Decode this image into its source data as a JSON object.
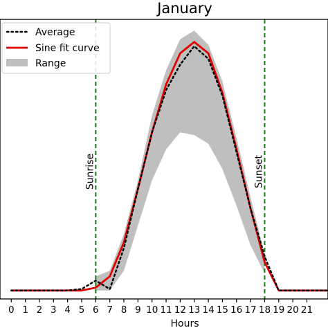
{
  "chart_data": {
    "type": "line",
    "title": "January",
    "xlabel": "Hours",
    "ylabel": "",
    "xlim": [
      -0.8,
      22.5
    ],
    "ylim": [
      -0.3,
      9.6
    ],
    "x_ticks": [
      "0",
      "1",
      "2",
      "3",
      "4",
      "5",
      "6",
      "7",
      "8",
      "9",
      "10",
      "11",
      "12",
      "13",
      "14",
      "15",
      "16",
      "17",
      "18",
      "19",
      "20",
      "21"
    ],
    "grid": false,
    "legend_position": "top-left",
    "series": [
      {
        "name": "Average",
        "style": "dotted",
        "color": "#000000",
        "x": [
          0,
          1,
          2,
          3,
          4,
          5,
          6,
          7,
          8,
          9,
          10,
          11,
          12,
          13,
          14,
          15,
          16,
          17,
          18,
          19,
          20,
          21,
          22,
          23
        ],
        "values": [
          0,
          0,
          0,
          0,
          0,
          0.05,
          0.35,
          0.05,
          1.5,
          3.6,
          5.6,
          7.1,
          8.0,
          8.65,
          8.2,
          6.9,
          4.9,
          2.9,
          1.2,
          0,
          0,
          0,
          0,
          0
        ]
      },
      {
        "name": "Sine fit curve",
        "style": "solid",
        "color": "#e00000",
        "x": [
          0,
          1,
          2,
          3,
          4,
          5,
          6,
          7,
          8,
          9,
          10,
          11,
          12,
          13,
          14,
          15,
          16,
          17,
          18,
          19,
          20,
          21,
          22,
          23
        ],
        "values": [
          0,
          0,
          0,
          0,
          0,
          0,
          0.1,
          0.5,
          1.7,
          3.6,
          5.6,
          7.3,
          8.4,
          8.8,
          8.4,
          7.0,
          5.0,
          2.9,
          1.0,
          0,
          0,
          0,
          0,
          0
        ]
      }
    ],
    "range": {
      "name": "Range",
      "color": "#bfbfbf",
      "x": [
        6,
        7,
        8,
        9,
        10,
        11,
        12,
        13,
        14,
        15,
        16,
        17,
        18
      ],
      "upper": [
        0.5,
        0.7,
        2.0,
        3.9,
        6.2,
        7.8,
        8.9,
        9.2,
        8.7,
        7.4,
        5.4,
        3.3,
        1.3
      ],
      "lower": [
        0,
        0,
        0.7,
        2.3,
        3.9,
        5.0,
        5.6,
        5.5,
        5.2,
        4.3,
        3.0,
        1.6,
        0.6
      ]
    },
    "vlines": [
      {
        "x": 6,
        "label": "Sunrise",
        "color": "#1a7a1a"
      },
      {
        "x": 18,
        "label": "Sunset",
        "color": "#1a7a1a"
      }
    ]
  }
}
